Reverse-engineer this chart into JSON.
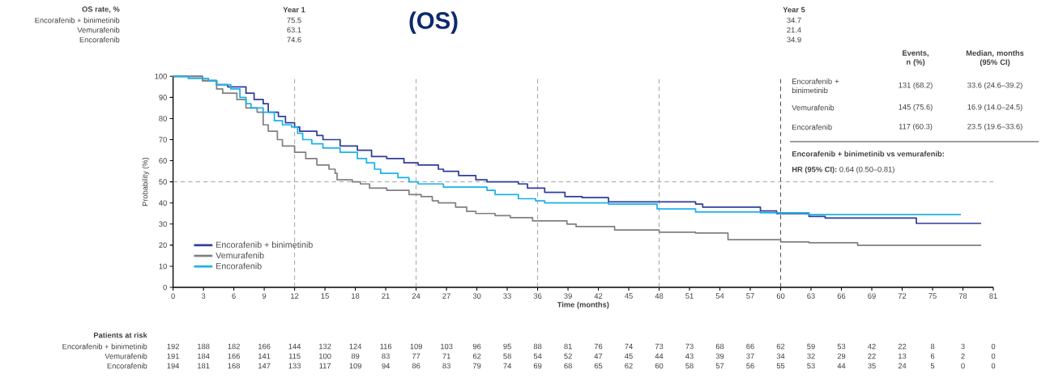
{
  "chart_data": {
    "type": "step",
    "title": "(OS)",
    "xlabel": "Time (months)",
    "ylabel": "Probability (%)",
    "xlim": [
      0,
      81
    ],
    "ylim": [
      0,
      100
    ],
    "xticks": [
      0,
      3,
      6,
      9,
      12,
      15,
      18,
      21,
      24,
      27,
      30,
      33,
      36,
      39,
      42,
      45,
      48,
      51,
      54,
      57,
      60,
      63,
      66,
      69,
      72,
      75,
      78,
      81
    ],
    "yticks": [
      0,
      10,
      20,
      30,
      40,
      50,
      60,
      70,
      80,
      90,
      100
    ],
    "legend": "bottom left",
    "series": [
      {
        "name": "Encorafenib + binimetinib",
        "color": "#2f3c9c",
        "x": [
          0,
          2.9,
          4.3,
          5.4,
          7.2,
          8.0,
          8.9,
          9.4,
          10.4,
          11.1,
          12,
          12.5,
          14.2,
          14.8,
          16.5,
          18.2,
          19.6,
          21.1,
          22.8,
          24.2,
          26.2,
          26.7,
          28.2,
          29.9,
          31,
          34.1,
          35,
          36.7,
          38.7,
          40.4,
          43,
          51.6,
          52.3,
          58,
          59.6,
          62.8,
          64.4,
          73.4,
          79.8
        ],
        "values": [
          100,
          98,
          96,
          95,
          92,
          89,
          87,
          83,
          81,
          78,
          76,
          74,
          72,
          70,
          67,
          65,
          62,
          61,
          59,
          58,
          56,
          55,
          53,
          51,
          50,
          49,
          47,
          45,
          43,
          42.5,
          40.5,
          39.5,
          38,
          36.2,
          34.9,
          33.6,
          32.8,
          30.3,
          30.3
        ]
      },
      {
        "name": "Vemurafenib",
        "color": "#808080",
        "x": [
          0,
          2.9,
          4.3,
          4.9,
          6.3,
          7.2,
          8.3,
          8.9,
          9.4,
          10.3,
          10.8,
          12,
          13.1,
          14.2,
          15.4,
          16,
          16.2,
          17.7,
          18.5,
          19.4,
          21.1,
          23.3,
          24.5,
          25.6,
          26.2,
          27.9,
          29,
          29.9,
          31.8,
          33.3,
          35.5,
          38.9,
          39.8,
          43.6,
          48,
          51.6,
          54.8,
          60,
          62.8,
          67.6,
          79.8
        ],
        "values": [
          100,
          98,
          94,
          92,
          89,
          85,
          83,
          77,
          74,
          70,
          67,
          64,
          61,
          58,
          56,
          54,
          51,
          50,
          49,
          47,
          46,
          44,
          43,
          41,
          40,
          38,
          36,
          35,
          34,
          33,
          31.5,
          30,
          28.8,
          27.2,
          26.1,
          25.7,
          22.6,
          21.5,
          21.1,
          19.9,
          19.9
        ]
      },
      {
        "name": "Encorafenib",
        "color": "#1ab2e8",
        "x": [
          0,
          1.5,
          3.5,
          4.3,
          5.7,
          6.6,
          7.2,
          7.7,
          8.9,
          10,
          10.8,
          11.7,
          12.3,
          12.8,
          13.7,
          14.8,
          16.5,
          18.2,
          19.1,
          19.9,
          20.5,
          22.2,
          23.3,
          24.2,
          26.7,
          31,
          31.8,
          34.1,
          35.8,
          36.7,
          43,
          47.8,
          51.6,
          58,
          62.8,
          77.8
        ],
        "values": [
          100,
          99,
          98,
          96,
          94,
          90,
          87,
          85,
          83,
          79,
          77,
          76,
          73,
          70,
          68,
          66,
          64,
          61,
          59,
          56,
          54,
          52,
          50,
          49,
          47.5,
          46,
          44,
          42,
          41,
          40,
          39.5,
          37.2,
          35.7,
          35.3,
          34.5,
          34.5
        ]
      }
    ],
    "ref_lines": [
      {
        "axis": "x",
        "value": 12,
        "color": "#8c8c8c",
        "line_style": "dashed"
      },
      {
        "axis": "x",
        "value": 24,
        "color": "#8c8c8c",
        "line_style": "dashed"
      },
      {
        "axis": "x",
        "value": 36,
        "color": "#8c8c8c",
        "line_style": "dashed"
      },
      {
        "axis": "x",
        "value": 48,
        "color": "#8c8c8c",
        "line_style": "dashed"
      },
      {
        "axis": "x",
        "value": 60,
        "color": "#222222",
        "line_style": "dashed"
      },
      {
        "axis": "y",
        "value": 50,
        "color": "#8c8c8c",
        "line_style": "dashed"
      }
    ],
    "annotations": [
      "OS rate, %",
      "Year 1",
      "Year 5",
      "Encorafenib + binimetinib",
      "Vemurafenib",
      "Encorafenib",
      "75.5",
      "63.1",
      "74.6",
      "34.7",
      "21.4",
      "34.9",
      "Events, n (%)",
      "Median, months (95% CI)",
      "Encorafenib + binimetinib",
      "131 (68.2)",
      "33.6 (24.6–39.2)",
      "Vemurafenib",
      "145 (75.6)",
      "16.9 (14.0–24.5)",
      "Encorafenib",
      "117 (60.3)",
      "23.5 (19.6–33.6)",
      "Encorafenib + binimetinib vs vemurafenib:",
      "**HR (95% CI):** 0.64 (0.50–0.81)",
      "Patients at risk",
      "Encorafenib + binimetinib",
      "Vemurafenib",
      "Encorafenib",
      "192",
      "188",
      "182",
      "166",
      "144",
      "132",
      "124",
      "116",
      "109",
      "103",
      "96",
      "95",
      "88",
      "81",
      "76",
      "74",
      "73",
      "73",
      "68",
      "66",
      "62",
      "59",
      "53",
      "42",
      "22",
      "8",
      "3",
      "0",
      "191",
      "184",
      "166",
      "141",
      "115",
      "100",
      "89",
      "83",
      "77",
      "71",
      "62",
      "58",
      "54",
      "52",
      "47",
      "45",
      "44",
      "43",
      "39",
      "37",
      "34",
      "32",
      "29",
      "22",
      "13",
      "6",
      "2",
      "0",
      "194",
      "181",
      "168",
      "147",
      "133",
      "117",
      "109",
      "94",
      "86",
      "83",
      "79",
      "74",
      "69",
      "68",
      "65",
      "62",
      "60",
      "58",
      "57",
      "56",
      "55",
      "53",
      "44",
      "35",
      "24",
      "5",
      "0",
      "0"
    ]
  }
}
